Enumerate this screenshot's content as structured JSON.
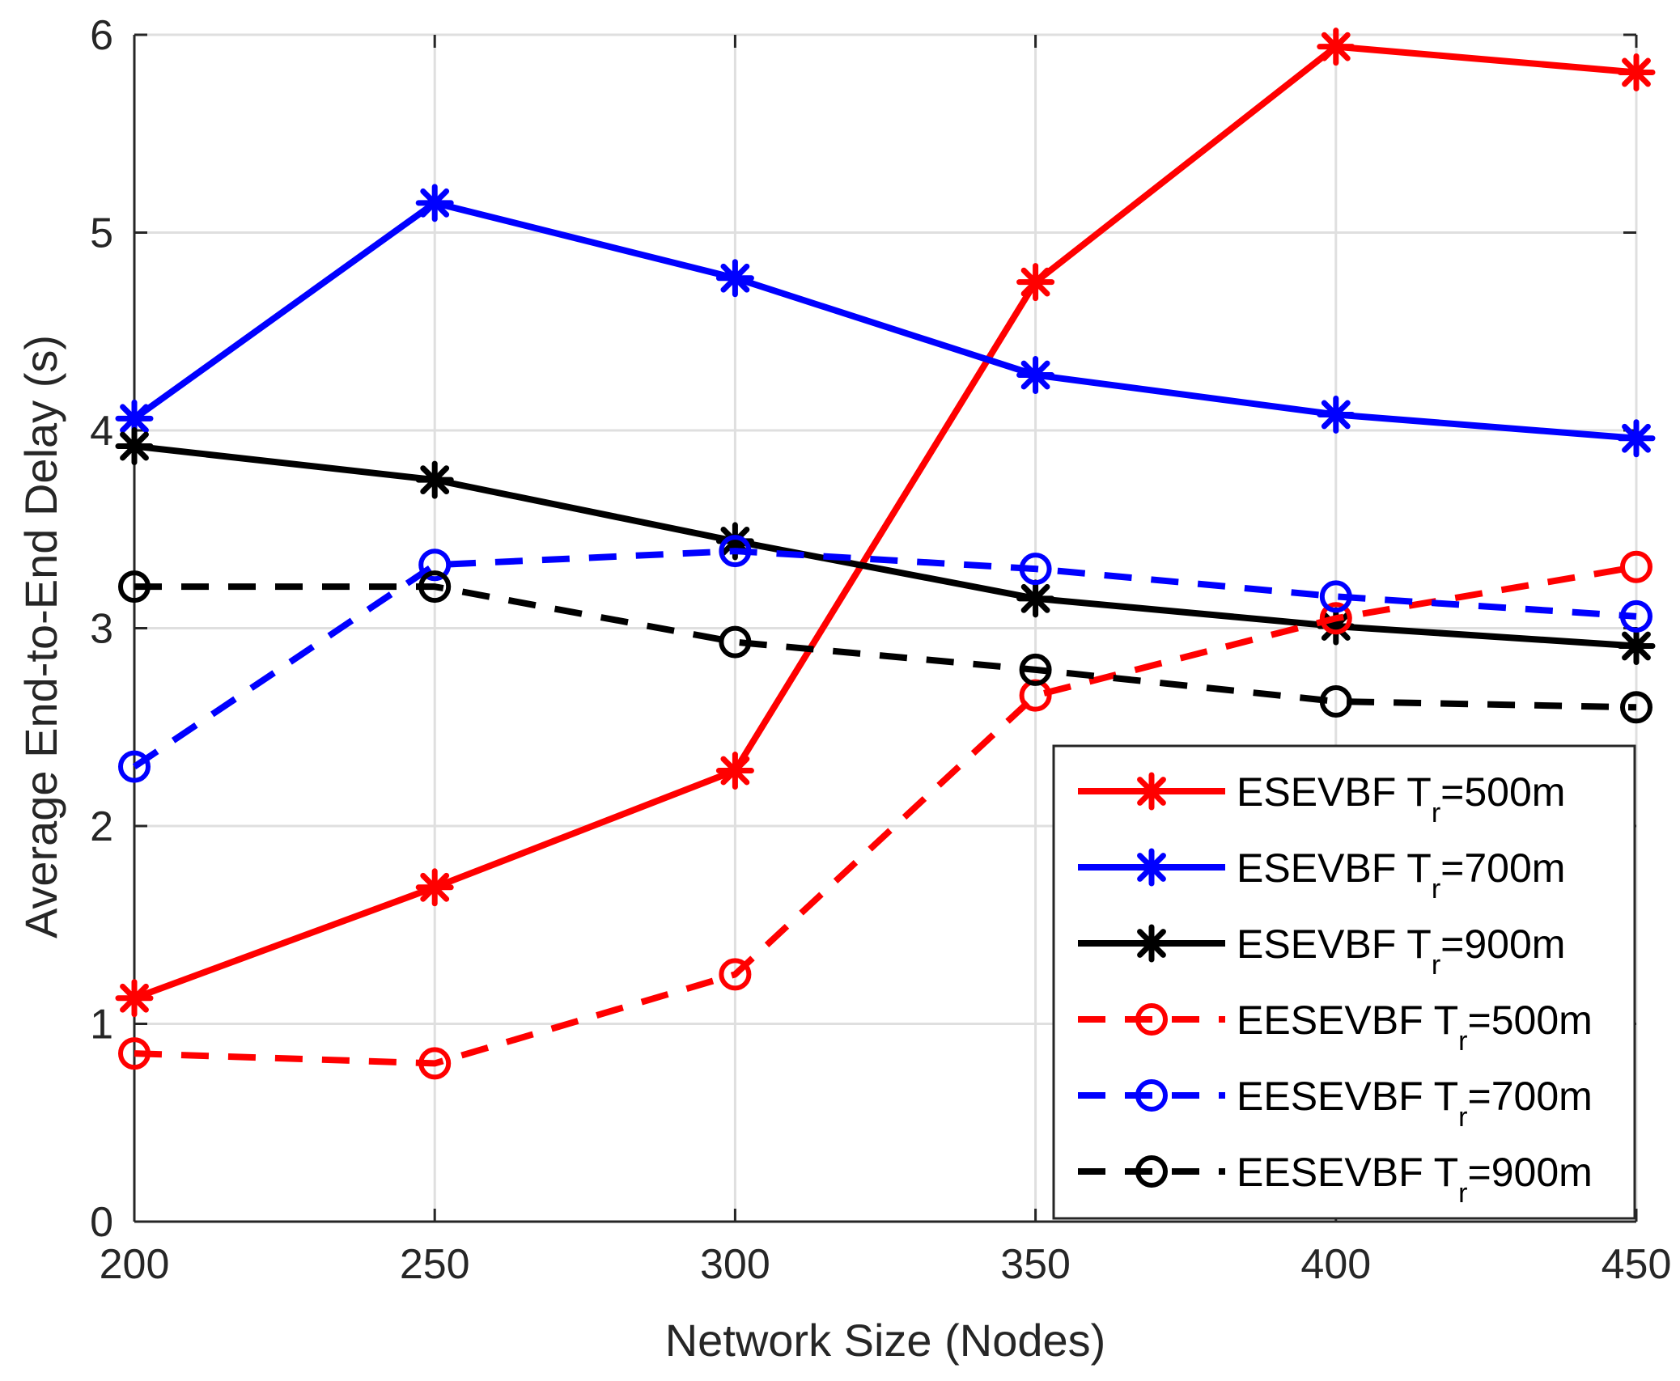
{
  "chart_data": {
    "type": "line",
    "title": "",
    "xlabel": "Network Size (Nodes)",
    "ylabel": "Average End-to-End Delay (s)",
    "x": [
      200,
      250,
      300,
      350,
      400,
      450
    ],
    "xlim": [
      200,
      450
    ],
    "ylim": [
      0,
      6
    ],
    "xticks": [
      "200",
      "250",
      "300",
      "350",
      "400",
      "450"
    ],
    "yticks": [
      "0",
      "1",
      "2",
      "3",
      "4",
      "5",
      "6"
    ],
    "grid": true,
    "legend_position": "bottom-right",
    "series": [
      {
        "name": "ESEVBF Tr=500m",
        "label_main": "ESEVBF T",
        "label_sub": "r",
        "label_tail": "=500m",
        "color": "#ff0000",
        "line": "solid",
        "marker": "asterisk",
        "values": [
          1.13,
          1.69,
          2.28,
          4.75,
          5.94,
          5.81
        ]
      },
      {
        "name": "ESEVBF Tr=700m",
        "label_main": "ESEVBF T",
        "label_sub": "r",
        "label_tail": "=700m",
        "color": "#0000ff",
        "line": "solid",
        "marker": "asterisk",
        "values": [
          4.06,
          5.15,
          4.77,
          4.28,
          4.08,
          3.96
        ]
      },
      {
        "name": "ESEVBF Tr=900m",
        "label_main": "ESEVBF T",
        "label_sub": "r",
        "label_tail": "=900m",
        "color": "#000000",
        "line": "solid",
        "marker": "asterisk",
        "values": [
          3.92,
          3.75,
          3.44,
          3.15,
          3.01,
          2.91
        ]
      },
      {
        "name": "EESEVBF Tr=500m",
        "label_main": "EESEVBF T",
        "label_sub": "r",
        "label_tail": "=500m",
        "color": "#ff0000",
        "line": "dashed",
        "marker": "circle",
        "values": [
          0.85,
          0.8,
          1.25,
          2.66,
          3.05,
          3.31
        ]
      },
      {
        "name": "EESEVBF Tr=700m",
        "label_main": "EESEVBF  T",
        "label_sub": "r",
        "label_tail": "=700m",
        "color": "#0000ff",
        "line": "dashed",
        "marker": "circle",
        "values": [
          2.3,
          3.32,
          3.39,
          3.3,
          3.16,
          3.06
        ]
      },
      {
        "name": "EESEVBF Tr=900m",
        "label_main": "EESEVBF  T",
        "label_sub": "r",
        "label_tail": "=900m",
        "color": "#000000",
        "line": "dashed",
        "marker": "circle",
        "values": [
          3.21,
          3.21,
          2.93,
          2.79,
          2.63,
          2.6
        ]
      }
    ]
  }
}
